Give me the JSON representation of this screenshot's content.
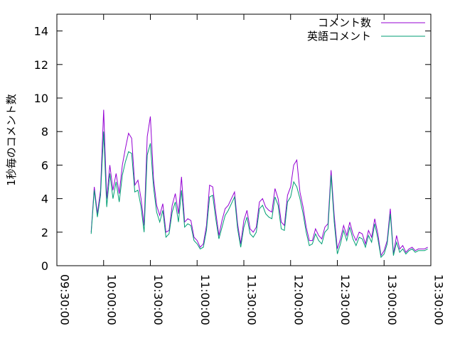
{
  "chart_data": {
    "type": "line",
    "title": "",
    "xlabel": "",
    "ylabel": "1秒毎のコメント数",
    "ylim": [
      0,
      15
    ],
    "yticks": [
      0,
      2,
      4,
      6,
      8,
      10,
      12,
      14
    ],
    "xlim": [
      "09:30:00",
      "13:30:00"
    ],
    "xticks": [
      "09:30:00",
      "10:00:00",
      "10:30:00",
      "11:00:00",
      "11:30:00",
      "12:00:00",
      "12:30:00",
      "13:00:00",
      "13:30:00"
    ],
    "grid": false,
    "legend_position": "top-right",
    "series": [
      {
        "name": "コメント数",
        "color": "#9400d3",
        "x": [
          "09:52:00",
          "09:54:00",
          "09:56:00",
          "09:58:00",
          "10:00:00",
          "10:02:00",
          "10:04:00",
          "10:06:00",
          "10:08:00",
          "10:10:00",
          "10:12:00",
          "10:14:00",
          "10:16:00",
          "10:18:00",
          "10:20:00",
          "10:22:00",
          "10:24:00",
          "10:26:00",
          "10:28:00",
          "10:30:00",
          "10:32:00",
          "10:34:00",
          "10:36:00",
          "10:38:00",
          "10:40:00",
          "10:42:00",
          "10:44:00",
          "10:46:00",
          "10:48:00",
          "10:50:00",
          "10:52:00",
          "10:54:00",
          "10:56:00",
          "10:58:00",
          "11:00:00",
          "11:02:00",
          "11:04:00",
          "11:06:00",
          "11:08:00",
          "11:10:00",
          "11:12:00",
          "11:14:00",
          "11:16:00",
          "11:18:00",
          "11:20:00",
          "11:22:00",
          "11:24:00",
          "11:26:00",
          "11:28:00",
          "11:30:00",
          "11:32:00",
          "11:34:00",
          "11:36:00",
          "11:38:00",
          "11:40:00",
          "11:42:00",
          "11:44:00",
          "11:46:00",
          "11:48:00",
          "11:50:00",
          "11:52:00",
          "11:54:00",
          "11:56:00",
          "11:58:00",
          "12:00:00",
          "12:02:00",
          "12:04:00",
          "12:06:00",
          "12:08:00",
          "12:10:00",
          "12:12:00",
          "12:14:00",
          "12:16:00",
          "12:18:00",
          "12:20:00",
          "12:22:00",
          "12:24:00",
          "12:26:00",
          "12:28:00",
          "12:30:00",
          "12:32:00",
          "12:34:00",
          "12:36:00",
          "12:38:00",
          "12:40:00",
          "12:42:00",
          "12:44:00",
          "12:46:00",
          "12:48:00",
          "12:50:00",
          "12:52:00",
          "12:54:00",
          "12:56:00",
          "12:58:00",
          "13:00:00",
          "13:02:00",
          "13:04:00",
          "13:06:00",
          "13:08:00",
          "13:10:00",
          "13:12:00",
          "13:14:00",
          "13:16:00",
          "13:18:00",
          "13:20:00",
          "13:22:00",
          "13:24:00",
          "13:26:00",
          "13:28:00"
        ],
        "values": [
          2.0,
          4.7,
          3.1,
          4.5,
          9.3,
          4.0,
          6.0,
          4.5,
          5.5,
          4.3,
          6.0,
          7.0,
          7.9,
          7.6,
          4.8,
          5.1,
          4.0,
          2.4,
          7.7,
          8.9,
          5.2,
          3.6,
          3.0,
          3.7,
          2.0,
          2.1,
          3.6,
          4.3,
          3.1,
          5.3,
          2.6,
          2.8,
          2.7,
          1.7,
          1.5,
          1.1,
          1.3,
          2.4,
          4.8,
          4.7,
          3.2,
          1.8,
          2.7,
          3.4,
          3.6,
          4.0,
          4.4,
          2.5,
          1.3,
          2.7,
          3.3,
          2.2,
          2.0,
          2.3,
          3.8,
          4.0,
          3.5,
          3.3,
          3.2,
          4.6,
          4.0,
          2.6,
          2.4,
          4.2,
          4.7,
          6.0,
          6.3,
          4.4,
          3.5,
          2.3,
          1.5,
          1.5,
          2.2,
          1.8,
          1.6,
          2.3,
          2.5,
          5.7,
          3.0,
          1.0,
          1.6,
          2.4,
          1.8,
          2.6,
          1.9,
          1.5,
          2.0,
          1.9,
          1.3,
          2.1,
          1.7,
          2.8,
          1.9,
          0.6,
          0.9,
          1.5,
          3.4,
          0.7,
          1.8,
          1.0,
          1.2,
          0.8,
          1.0,
          1.1,
          0.9,
          1.0,
          1.0,
          1.0,
          1.1
        ]
      },
      {
        "name": "英語コメント",
        "color": "#009e73",
        "x": [
          "09:52:00",
          "09:54:00",
          "09:56:00",
          "09:58:00",
          "10:00:00",
          "10:02:00",
          "10:04:00",
          "10:06:00",
          "10:08:00",
          "10:10:00",
          "10:12:00",
          "10:14:00",
          "10:16:00",
          "10:18:00",
          "10:20:00",
          "10:22:00",
          "10:24:00",
          "10:26:00",
          "10:28:00",
          "10:30:00",
          "10:32:00",
          "10:34:00",
          "10:36:00",
          "10:38:00",
          "10:40:00",
          "10:42:00",
          "10:44:00",
          "10:46:00",
          "10:48:00",
          "10:50:00",
          "10:52:00",
          "10:54:00",
          "10:56:00",
          "10:58:00",
          "11:00:00",
          "11:02:00",
          "11:04:00",
          "11:06:00",
          "11:08:00",
          "11:10:00",
          "11:12:00",
          "11:14:00",
          "11:16:00",
          "11:18:00",
          "11:20:00",
          "11:22:00",
          "11:24:00",
          "11:26:00",
          "11:28:00",
          "11:30:00",
          "11:32:00",
          "11:34:00",
          "11:36:00",
          "11:38:00",
          "11:40:00",
          "11:42:00",
          "11:44:00",
          "11:46:00",
          "11:48:00",
          "11:50:00",
          "11:52:00",
          "11:54:00",
          "11:56:00",
          "11:58:00",
          "12:00:00",
          "12:02:00",
          "12:04:00",
          "12:06:00",
          "12:08:00",
          "12:10:00",
          "12:12:00",
          "12:14:00",
          "12:16:00",
          "12:18:00",
          "12:20:00",
          "12:22:00",
          "12:24:00",
          "12:26:00",
          "12:28:00",
          "12:30:00",
          "12:32:00",
          "12:34:00",
          "12:36:00",
          "12:38:00",
          "12:40:00",
          "12:42:00",
          "12:44:00",
          "12:46:00",
          "12:48:00",
          "12:50:00",
          "12:52:00",
          "12:54:00",
          "12:56:00",
          "12:58:00",
          "13:00:00",
          "13:02:00",
          "13:04:00",
          "13:06:00",
          "13:08:00",
          "13:10:00",
          "13:12:00",
          "13:14:00",
          "13:16:00",
          "13:18:00",
          "13:20:00",
          "13:22:00",
          "13:24:00",
          "13:26:00",
          "13:28:00"
        ],
        "values": [
          1.9,
          4.5,
          2.9,
          4.2,
          8.0,
          3.5,
          5.5,
          4.0,
          5.0,
          3.8,
          5.4,
          6.2,
          6.8,
          6.7,
          4.4,
          4.5,
          3.5,
          2.0,
          6.6,
          7.3,
          4.7,
          3.2,
          2.6,
          3.3,
          1.7,
          1.9,
          3.2,
          3.8,
          2.6,
          4.5,
          2.3,
          2.5,
          2.4,
          1.5,
          1.3,
          1.0,
          1.1,
          2.1,
          4.1,
          4.2,
          2.8,
          1.6,
          2.3,
          3.0,
          3.3,
          3.7,
          4.1,
          2.2,
          1.1,
          2.3,
          2.9,
          1.9,
          1.7,
          2.0,
          3.4,
          3.6,
          3.1,
          2.9,
          2.8,
          4.1,
          3.6,
          2.2,
          2.1,
          3.8,
          4.1,
          5.0,
          4.7,
          4.0,
          3.1,
          2.0,
          1.2,
          1.3,
          1.9,
          1.5,
          1.3,
          2.0,
          2.2,
          5.4,
          2.6,
          0.7,
          1.3,
          2.1,
          1.5,
          2.3,
          1.6,
          1.2,
          1.7,
          1.6,
          1.1,
          1.8,
          1.4,
          2.5,
          1.6,
          0.5,
          0.7,
          1.3,
          3.1,
          0.6,
          1.4,
          0.8,
          1.0,
          0.7,
          0.9,
          1.0,
          0.8,
          0.9,
          0.9,
          0.9,
          1.0
        ]
      }
    ]
  }
}
